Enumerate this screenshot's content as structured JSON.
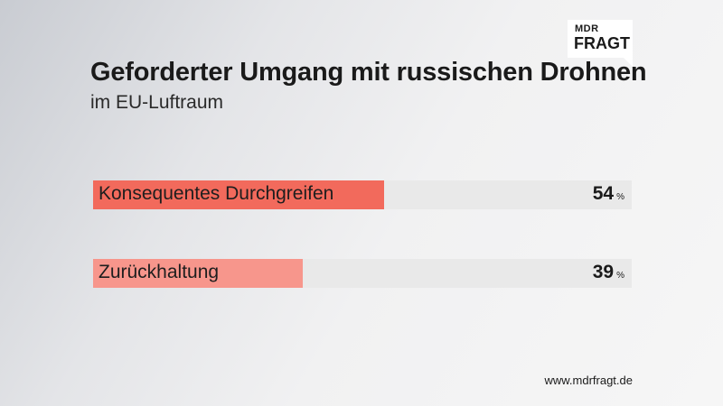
{
  "logo": {
    "top": "MDR",
    "bottom": "FRAGT"
  },
  "header": {
    "title": "Geforderter Umgang mit russischen Drohnen",
    "subtitle": "im EU-Luftraum"
  },
  "chart_data": {
    "type": "bar",
    "orientation": "horizontal",
    "title": "Geforderter Umgang mit russischen Drohnen",
    "subtitle": "im EU-Luftraum",
    "categories": [
      "Konsequentes Durchgreifen",
      "Zurückhaltung"
    ],
    "values": [
      54,
      39
    ],
    "unit": "%",
    "xlim": [
      0,
      100
    ],
    "colors": [
      "#f26a5c",
      "#f7968c"
    ],
    "grid": false,
    "legend": "none"
  },
  "footer": {
    "url": "www.mdrfragt.de"
  }
}
